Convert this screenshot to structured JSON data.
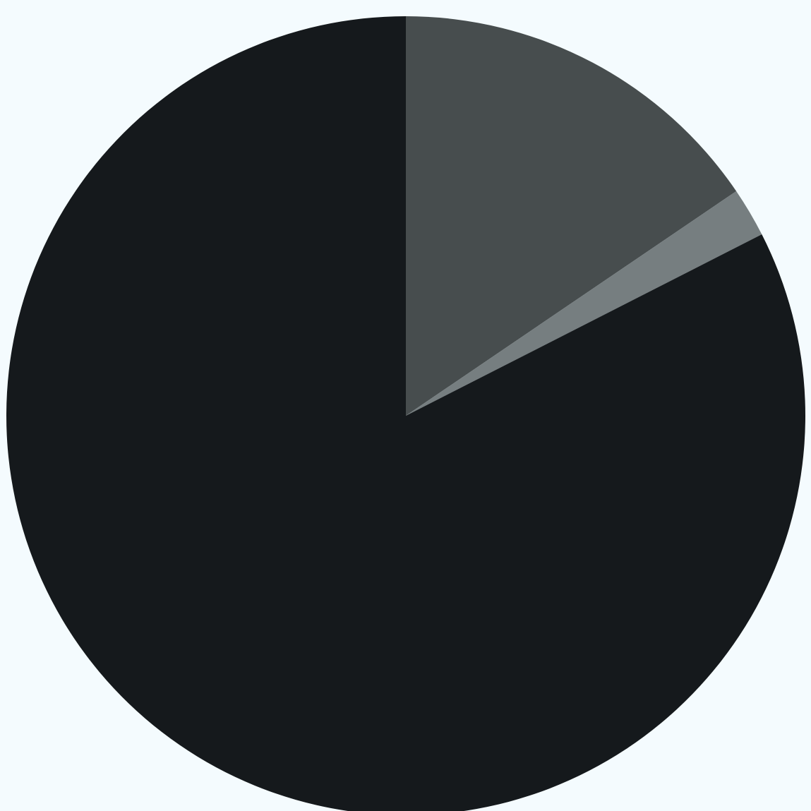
{
  "chart_data": {
    "type": "pie",
    "start_angle": "12 o'clock",
    "direction": "clockwise",
    "slices": [
      {
        "value": 15.5,
        "color": "#474d4e"
      },
      {
        "value": 2.0,
        "color": "#767e80"
      },
      {
        "value": 82.5,
        "color": "#15191c"
      }
    ],
    "background": "#f4fbfe"
  }
}
